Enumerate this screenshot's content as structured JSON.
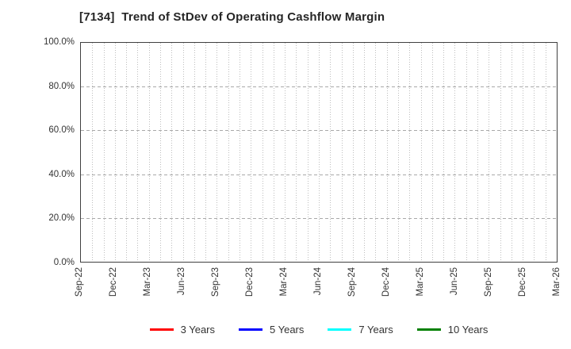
{
  "header": {
    "title": "[7134]  Trend of StDev of Operating Cashflow Margin"
  },
  "chart_data": {
    "type": "line",
    "title": "[7134]  Trend of StDev of Operating Cashflow Margin",
    "x_tick_labels": [
      "Sep-22",
      "Dec-22",
      "Mar-23",
      "Jun-23",
      "Sep-23",
      "Dec-23",
      "Mar-24",
      "Jun-24",
      "Sep-24",
      "Dec-24",
      "Mar-25",
      "Jun-25",
      "Sep-25",
      "Dec-25",
      "Mar-26"
    ],
    "x_minor_gridlines_per_interval": 3,
    "y_tick_labels": [
      "0.0%",
      "20.0%",
      "40.0%",
      "60.0%",
      "80.0%",
      "100.0%"
    ],
    "ylim": [
      0,
      100
    ],
    "grid": true,
    "plot_empty": true,
    "legend_position": "bottom-center",
    "series": [
      {
        "name": "3 Years",
        "color": "#ff0000",
        "values": []
      },
      {
        "name": "5 Years",
        "color": "#0000ff",
        "values": []
      },
      {
        "name": "7 Years",
        "color": "#00ffff",
        "values": []
      },
      {
        "name": "10 Years",
        "color": "#008000",
        "values": []
      }
    ]
  },
  "colors": {
    "background": "#ffffff",
    "title_text": "#262626",
    "tick_label": "#333333",
    "axis_border": "#404040",
    "grid_vertical": "#bdbdbd",
    "grid_horizontal": "#a9a9a9"
  }
}
